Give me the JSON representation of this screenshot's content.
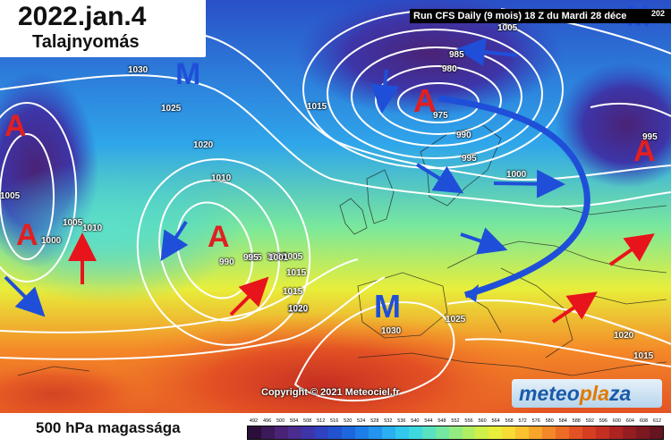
{
  "title": {
    "date": "2022.jan.4",
    "subtitle": "Talajnyomás"
  },
  "run_label": "Run CFS Daily (9 mois) 18 Z du Mardi 28 déce",
  "run_label_corner": "202",
  "copyright": "Copyright © 2021 Meteociel.fr",
  "brand": {
    "part1": "meteo",
    "part2": "pla",
    "part3": "za"
  },
  "bottom_label": "500 hPa magassága",
  "scale": {
    "ticks": [
      "492",
      "496",
      "500",
      "504",
      "508",
      "512",
      "516",
      "520",
      "524",
      "528",
      "532",
      "536",
      "540",
      "544",
      "548",
      "552",
      "556",
      "560",
      "564",
      "568",
      "572",
      "576",
      "580",
      "584",
      "588",
      "592",
      "596",
      "600",
      "604",
      "608",
      "612"
    ],
    "colors": [
      "#2b0f3a",
      "#3b1a5a",
      "#4a2376",
      "#4b2c8f",
      "#3d35a8",
      "#2f42bf",
      "#2352cf",
      "#1d66dd",
      "#1e7ee7",
      "#2495ee",
      "#2aaff0",
      "#31c7ee",
      "#3fd8df",
      "#58e2c2",
      "#74e8a0",
      "#93ec80",
      "#b2ee62",
      "#cff048",
      "#e8ee3a",
      "#f6dc34",
      "#f9c22e",
      "#f8a52a",
      "#f48828",
      "#ec6c26",
      "#e35224",
      "#d63e22",
      "#c52f22",
      "#ad2422",
      "#951d22",
      "#7d1820",
      "#661420"
    ]
  },
  "pressure_centers": [
    {
      "type": "A",
      "color": "#e02020"
    },
    {
      "type": "A",
      "color": "#e02020"
    },
    {
      "type": "A",
      "color": "#e02020"
    },
    {
      "type": "A",
      "color": "#e02020"
    },
    {
      "type": "A",
      "color": "#e02020"
    },
    {
      "type": "M",
      "color": "#1f4fd8"
    },
    {
      "type": "M",
      "color": "#1f4fd8"
    },
    {
      "type": "M",
      "color": "#1f4fd8"
    }
  ],
  "isobar_labels": [
    "1030",
    "1025",
    "1020",
    "1015",
    "1010",
    "1005",
    "1005",
    "1000",
    "1010",
    "995",
    "1005",
    "1005",
    "1015",
    "1020",
    "990",
    "995",
    "1001",
    "1015",
    "1020",
    "1025",
    "1030",
    "985",
    "980",
    "975",
    "990",
    "995",
    "1000",
    "1005",
    "995",
    "1020",
    "1015"
  ],
  "colors": {
    "high": "#e02020",
    "low": "#1f4fd8",
    "arrow_blue": "#1f4fd8",
    "arrow_red": "#e8141c"
  }
}
